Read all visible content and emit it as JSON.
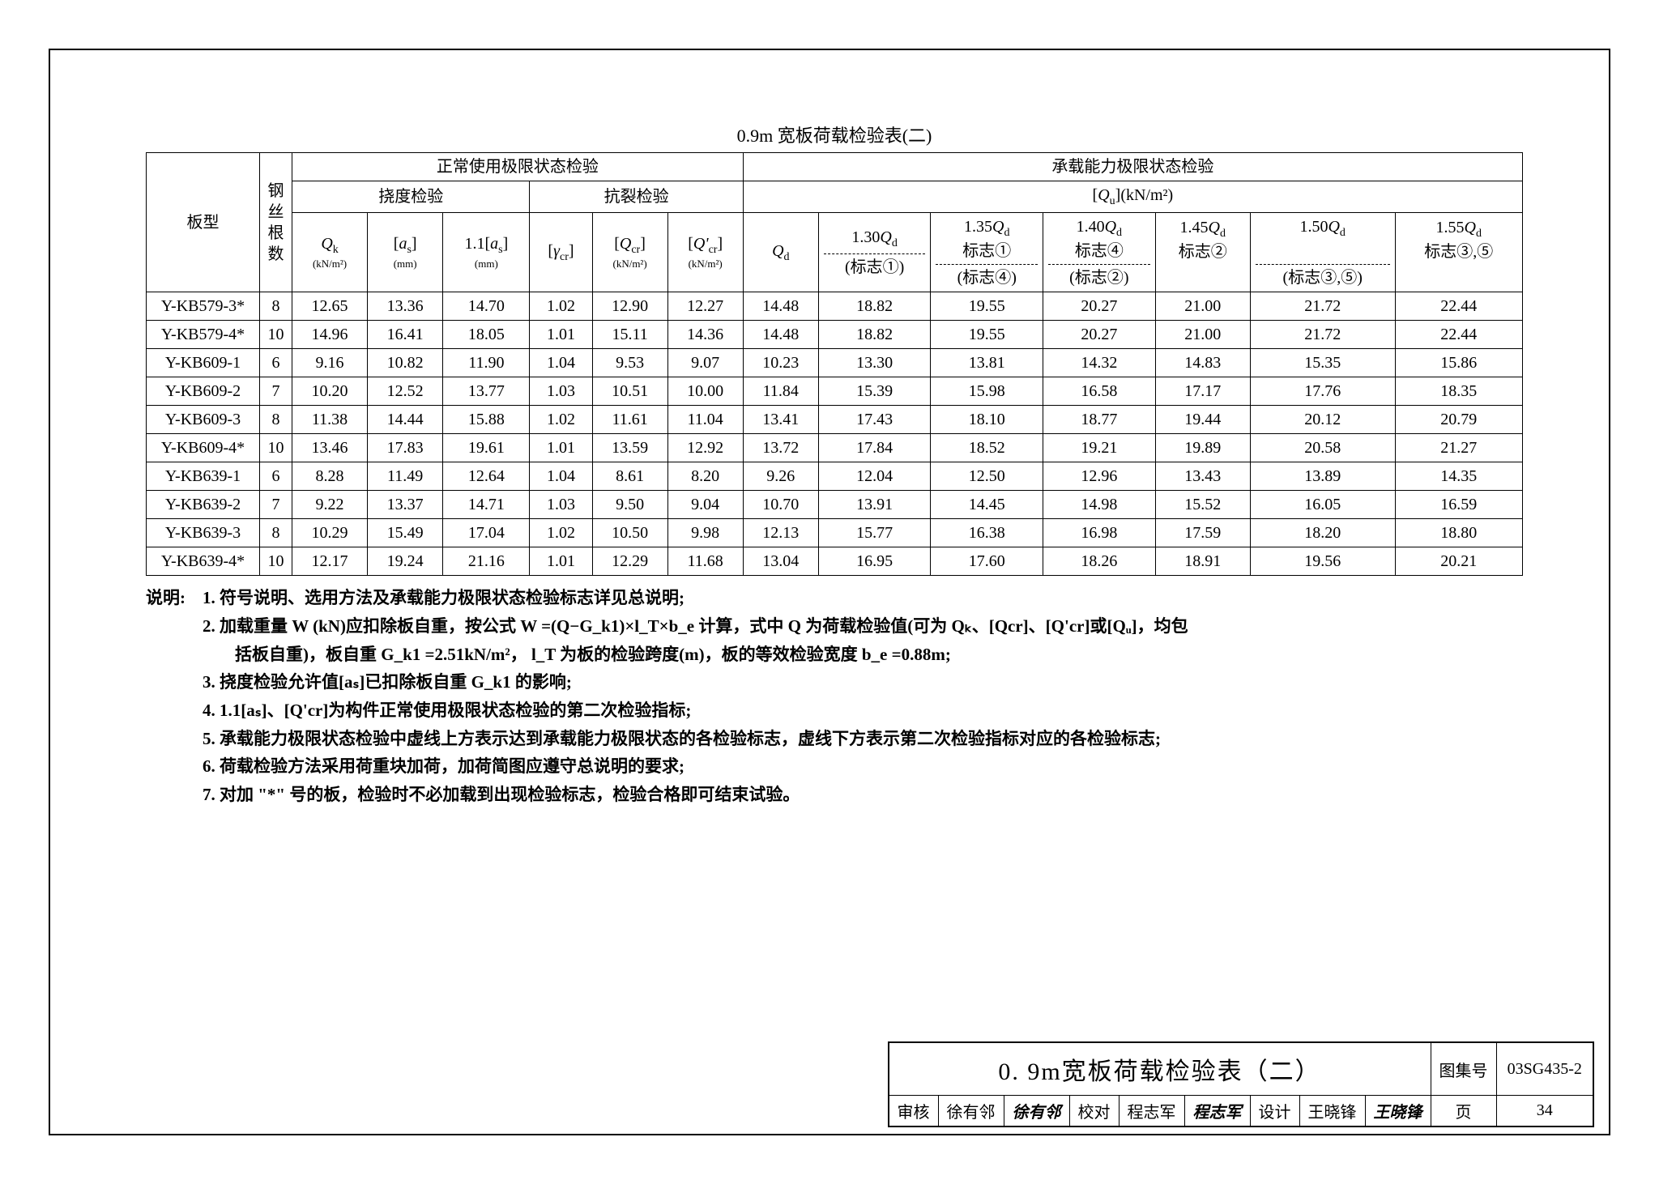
{
  "caption": "0.9m 宽板荷载检验表(二)",
  "headers": {
    "col_plate": "板型",
    "col_wires": "钢丝根数",
    "group_normal": "正常使用极限状态检验",
    "group_capacity": "承载能力极限状态检验",
    "sub_deflection": "挠度检验",
    "sub_crack": "抗裂检验",
    "sub_Qu": "[Qᵤ](kN/m²)",
    "Qk_label": "Qₖ",
    "Qk_unit": "(kN/m²)",
    "as_label": "[aₛ]",
    "as_unit": "(mm)",
    "as11_label": "1.1[aₛ]",
    "as11_unit": "(mm)",
    "gcr_label": "[γcr]",
    "Qcr_label": "[Qcr]",
    "Qcr_unit": "(kN/m²)",
    "Qcrp_label": "[Q'cr]",
    "Qcrp_unit": "(kN/m²)",
    "Qd_label": "Qd",
    "m130": "1.30Qd",
    "m135": "1.35Qd",
    "m140": "1.40Qd",
    "m145": "1.45Qd",
    "m150": "1.50Qd",
    "m155": "1.55Qd",
    "mark1": "标志①",
    "mark4": "标志④",
    "mark2": "标志②",
    "mark35": "标志③,⑤",
    "pmark1": "(标志①)",
    "pmark4": "(标志④)",
    "pmark2": "(标志②)",
    "pmark35": "(标志③,⑤)"
  },
  "rows": [
    {
      "plate": "Y-KB579-3*",
      "n": "8",
      "qk": "12.65",
      "as": "13.36",
      "as11": "14.70",
      "gcr": "1.02",
      "qcr": "12.90",
      "qcrp": "12.27",
      "qd": "14.48",
      "v130": "18.82",
      "v135": "19.55",
      "v140": "20.27",
      "v145": "21.00",
      "v150": "21.72",
      "v155": "22.44"
    },
    {
      "plate": "Y-KB579-4*",
      "n": "10",
      "qk": "14.96",
      "as": "16.41",
      "as11": "18.05",
      "gcr": "1.01",
      "qcr": "15.11",
      "qcrp": "14.36",
      "qd": "14.48",
      "v130": "18.82",
      "v135": "19.55",
      "v140": "20.27",
      "v145": "21.00",
      "v150": "21.72",
      "v155": "22.44"
    },
    {
      "plate": "Y-KB609-1",
      "n": "6",
      "qk": "9.16",
      "as": "10.82",
      "as11": "11.90",
      "gcr": "1.04",
      "qcr": "9.53",
      "qcrp": "9.07",
      "qd": "10.23",
      "v130": "13.30",
      "v135": "13.81",
      "v140": "14.32",
      "v145": "14.83",
      "v150": "15.35",
      "v155": "15.86"
    },
    {
      "plate": "Y-KB609-2",
      "n": "7",
      "qk": "10.20",
      "as": "12.52",
      "as11": "13.77",
      "gcr": "1.03",
      "qcr": "10.51",
      "qcrp": "10.00",
      "qd": "11.84",
      "v130": "15.39",
      "v135": "15.98",
      "v140": "16.58",
      "v145": "17.17",
      "v150": "17.76",
      "v155": "18.35"
    },
    {
      "plate": "Y-KB609-3",
      "n": "8",
      "qk": "11.38",
      "as": "14.44",
      "as11": "15.88",
      "gcr": "1.02",
      "qcr": "11.61",
      "qcrp": "11.04",
      "qd": "13.41",
      "v130": "17.43",
      "v135": "18.10",
      "v140": "18.77",
      "v145": "19.44",
      "v150": "20.12",
      "v155": "20.79"
    },
    {
      "plate": "Y-KB609-4*",
      "n": "10",
      "qk": "13.46",
      "as": "17.83",
      "as11": "19.61",
      "gcr": "1.01",
      "qcr": "13.59",
      "qcrp": "12.92",
      "qd": "13.72",
      "v130": "17.84",
      "v135": "18.52",
      "v140": "19.21",
      "v145": "19.89",
      "v150": "20.58",
      "v155": "21.27"
    },
    {
      "plate": "Y-KB639-1",
      "n": "6",
      "qk": "8.28",
      "as": "11.49",
      "as11": "12.64",
      "gcr": "1.04",
      "qcr": "8.61",
      "qcrp": "8.20",
      "qd": "9.26",
      "v130": "12.04",
      "v135": "12.50",
      "v140": "12.96",
      "v145": "13.43",
      "v150": "13.89",
      "v155": "14.35"
    },
    {
      "plate": "Y-KB639-2",
      "n": "7",
      "qk": "9.22",
      "as": "13.37",
      "as11": "14.71",
      "gcr": "1.03",
      "qcr": "9.50",
      "qcrp": "9.04",
      "qd": "10.70",
      "v130": "13.91",
      "v135": "14.45",
      "v140": "14.98",
      "v145": "15.52",
      "v150": "16.05",
      "v155": "16.59"
    },
    {
      "plate": "Y-KB639-3",
      "n": "8",
      "qk": "10.29",
      "as": "15.49",
      "as11": "17.04",
      "gcr": "1.02",
      "qcr": "10.50",
      "qcrp": "9.98",
      "qd": "12.13",
      "v130": "15.77",
      "v135": "16.38",
      "v140": "16.98",
      "v145": "17.59",
      "v150": "18.20",
      "v155": "18.80"
    },
    {
      "plate": "Y-KB639-4*",
      "n": "10",
      "qk": "12.17",
      "as": "19.24",
      "as11": "21.16",
      "gcr": "1.01",
      "qcr": "12.29",
      "qcrp": "11.68",
      "qd": "13.04",
      "v130": "16.95",
      "v135": "17.60",
      "v140": "18.26",
      "v145": "18.91",
      "v150": "19.56",
      "v155": "20.21"
    }
  ],
  "notes": {
    "label": "说明:",
    "n1": "1. 符号说明、选用方法及承载能力极限状态检验标志详见总说明;",
    "n2a": "2. 加载重量 W (kN)应扣除板自重，按公式 W =(Q−G_k1)×l_T×b_e 计算，式中 Q 为荷载检验值(可为 Qₖ、[Qcr]、[Q'cr]或[Qᵤ]，均包",
    "n2b": "括板自重)，板自重 G_k1 =2.51kN/m²， l_T 为板的检验跨度(m)，板的等效检验宽度 b_e =0.88m;",
    "n3": "3. 挠度检验允许值[aₛ]已扣除板自重 G_k1 的影响;",
    "n4": "4. 1.1[aₛ]、[Q'cr]为构件正常使用极限状态检验的第二次检验指标;",
    "n5": "5. 承载能力极限状态检验中虚线上方表示达到承载能力极限状态的各检验标志，虚线下方表示第二次检验指标对应的各检验标志;",
    "n6": "6. 荷载检验方法采用荷重块加荷，加荷简图应遵守总说明的要求;",
    "n7": "7. 对加 \"*\" 号的板，检验时不必加载到出现检验标志，检验合格即可结束试验。"
  },
  "titleblock": {
    "title": "0. 9m宽板荷载检验表（二）",
    "set_label": "图集号",
    "set_value": "03SG435-2",
    "audit_label": "审核",
    "audit_name": "徐有邻",
    "audit_sig": "徐有邻",
    "check_label": "校对",
    "check_name": "程志军",
    "check_sig": "程志军",
    "design_label": "设计",
    "design_name": "王晓锋",
    "design_sig": "王晓锋",
    "page_label": "页",
    "page_value": "34"
  }
}
